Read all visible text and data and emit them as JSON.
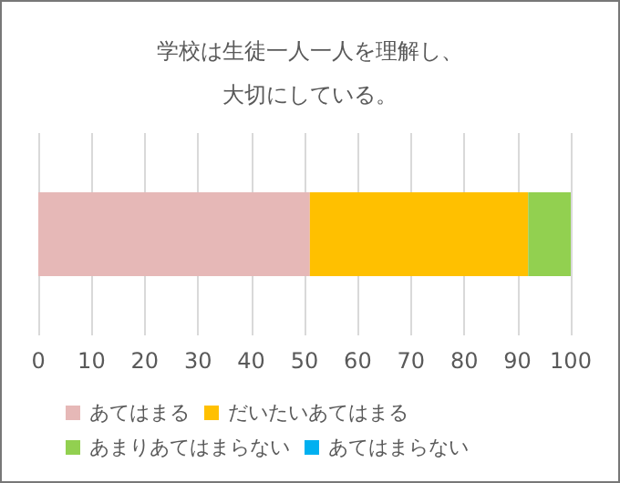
{
  "chart_data": {
    "type": "bar",
    "orientation": "horizontal",
    "stacked": true,
    "title": "学校は生徒一人一人を理解し、大切にしている。",
    "categories": [
      null
    ],
    "series": [
      {
        "name": "あてはまる",
        "color": "#e6b8b7",
        "values": [
          51
        ]
      },
      {
        "name": "だいたいあてはまる",
        "color": "#ffc000",
        "values": [
          41
        ]
      },
      {
        "name": "あまりあてはまらない",
        "color": "#92d050",
        "values": [
          8
        ]
      },
      {
        "name": "あてはまらない",
        "color": "#00b0f0",
        "values": [
          0
        ]
      }
    ],
    "xlim": [
      0,
      100
    ],
    "xticks": [
      0,
      10,
      20,
      30,
      40,
      50,
      60,
      70,
      80,
      90,
      100
    ],
    "grid": "x",
    "legend": "bottom"
  }
}
